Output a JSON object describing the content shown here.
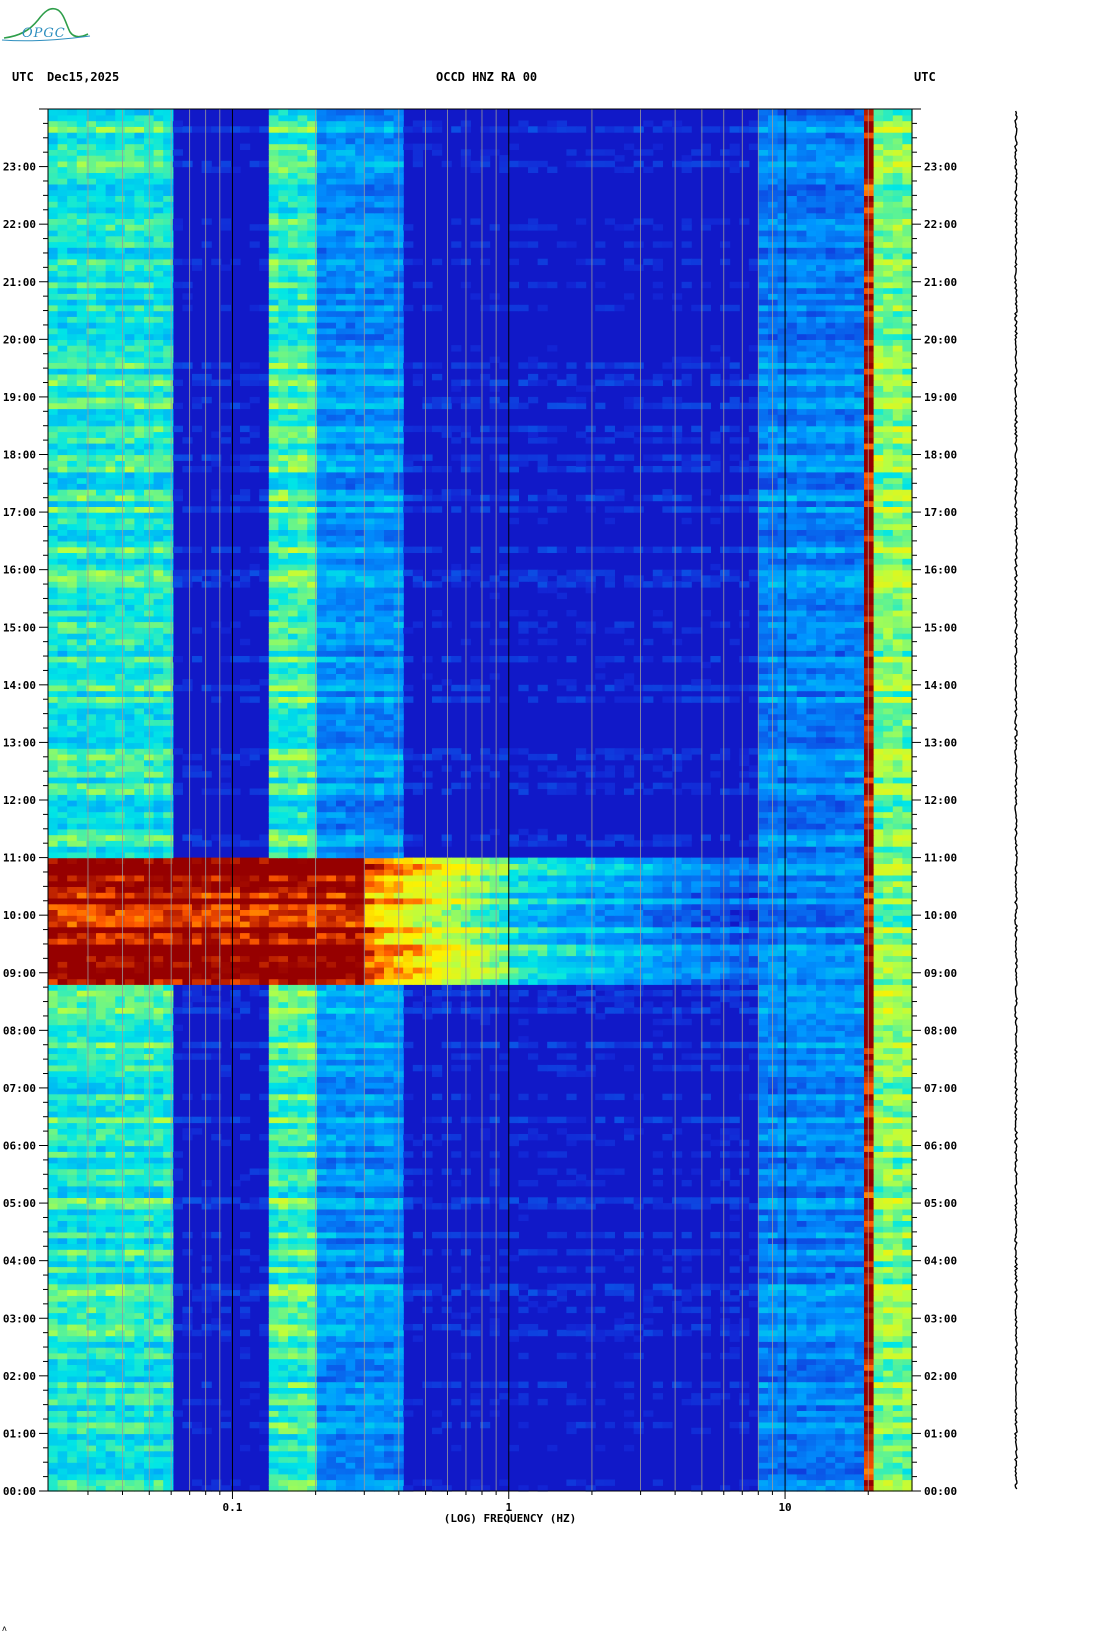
{
  "header": {
    "left_tz": "UTC",
    "date": "Dec15,2025",
    "station": "OCCD HNZ RA 00",
    "right_tz": "UTC"
  },
  "logo": {
    "text": "OPGC"
  },
  "colors": {
    "background": "#ffffff",
    "low": "#1a1aa8",
    "mid": "#00c8ff",
    "high": "#ffff00",
    "peak": "#a00000",
    "gridline": "#9a9a9a"
  },
  "chart_data": {
    "type": "heatmap",
    "title": "OCCD HNZ RA 00",
    "xlabel": "(LOG) FREQUENCY (HZ)",
    "ylabel": "UTC",
    "x_scale": "log",
    "xlim": [
      0.0215,
      28.8
    ],
    "x_tick_labels": [
      "0.1",
      "1",
      "10"
    ],
    "x_ticks": [
      0.1,
      1,
      10
    ],
    "y_unit": "hours",
    "ylim": [
      0,
      24
    ],
    "y_tick_labels": [
      "00:00",
      "01:00",
      "02:00",
      "03:00",
      "04:00",
      "05:00",
      "06:00",
      "07:00",
      "08:00",
      "09:00",
      "10:00",
      "11:00",
      "12:00",
      "13:00",
      "14:00",
      "15:00",
      "16:00",
      "17:00",
      "18:00",
      "19:00",
      "20:00",
      "21:00",
      "22:00",
      "23:00"
    ],
    "y_ticks": [
      0,
      1,
      2,
      3,
      4,
      5,
      6,
      7,
      8,
      9,
      10,
      11,
      12,
      13,
      14,
      15,
      16,
      17,
      18,
      19,
      20,
      21,
      22,
      23
    ],
    "frequency_gridlines": [
      0.03,
      0.04,
      0.05,
      0.06,
      0.07,
      0.08,
      0.09,
      0.1,
      0.2,
      0.3,
      0.4,
      0.5,
      0.6,
      0.7,
      0.8,
      0.9,
      1,
      2,
      3,
      4,
      5,
      6,
      7,
      8,
      9,
      10,
      20
    ],
    "bands": [
      {
        "name": "low-frequency band",
        "f_range": [
          0.0215,
          0.06
        ],
        "level": 0.52
      },
      {
        "name": "secondary microseism band",
        "f_range": [
          0.14,
          0.2
        ],
        "level": 0.55
      },
      {
        "name": "roll-off",
        "f_range": [
          0.2,
          0.4
        ],
        "level": 0.35
      },
      {
        "name": "noise floor",
        "f_range": [
          0.4,
          8
        ],
        "level": 0.08
      },
      {
        "name": "high-frequency noise",
        "f_range": [
          8,
          20
        ],
        "level": 0.32
      },
      {
        "name": "persistent line",
        "f_range": [
          19.5,
          20.5
        ],
        "level": 1.0
      },
      {
        "name": "high-frequency band",
        "f_range": [
          21,
          28.8
        ],
        "level": 0.62
      }
    ],
    "events": [
      {
        "name": "strong event",
        "t_start": 8.78,
        "t_end": 11.0,
        "level": 1.0
      }
    ],
    "series": []
  }
}
